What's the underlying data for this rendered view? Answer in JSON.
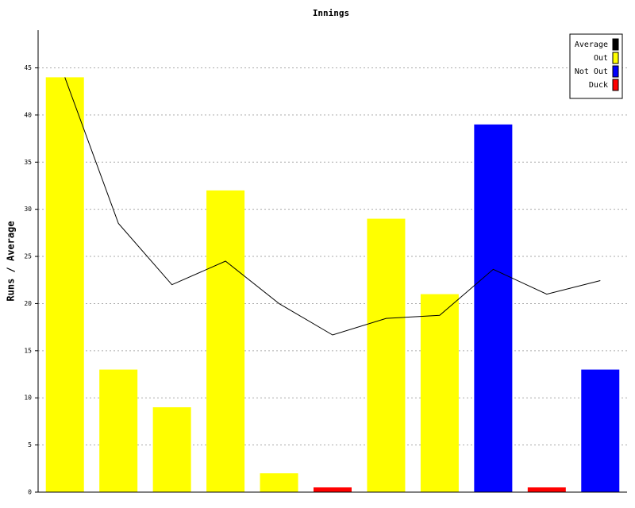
{
  "chart_data": {
    "type": "bar",
    "title": "Innings",
    "y_label": "Runs / Average",
    "series": [
      {
        "name": "Average",
        "color": "#000000",
        "type": "line",
        "values": [
          44,
          28.5,
          22,
          24.5,
          20,
          16.67,
          18.43,
          18.75,
          23.63,
          21,
          22.44
        ]
      },
      {
        "name": "Out",
        "color": "#ffff00",
        "values": [
          44,
          13,
          9,
          32,
          2,
          null,
          29,
          21,
          null,
          null,
          null
        ]
      },
      {
        "name": "Not Out",
        "color": "#0000ff",
        "values": [
          null,
          null,
          null,
          null,
          null,
          null,
          null,
          null,
          39,
          null,
          13
        ]
      },
      {
        "name": "Duck",
        "color": "#ff0000",
        "values": [
          null,
          null,
          null,
          null,
          null,
          0.5,
          null,
          null,
          null,
          0.5,
          null
        ]
      }
    ],
    "ylim": [
      0,
      49
    ],
    "yticks": [
      0,
      5,
      10,
      15,
      20,
      25,
      30,
      35,
      40,
      45
    ],
    "grid": true,
    "legend": "top-right"
  }
}
